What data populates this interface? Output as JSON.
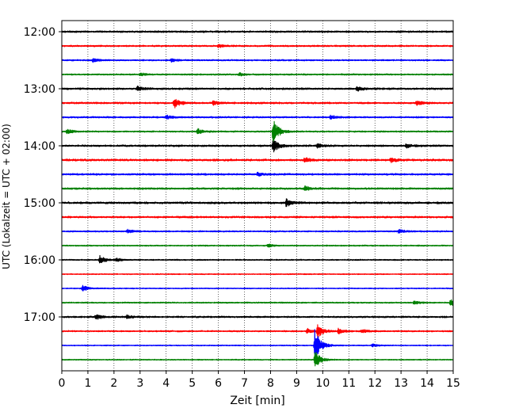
{
  "chart_data": {
    "type": "line",
    "subtype": "helicorder",
    "xlabel": "Zeit  [min]",
    "ylabel": "UTC (Lokalzeit = UTC + 02:00)",
    "xlim": [
      0,
      15
    ],
    "x_ticks": [
      "0",
      "1",
      "2",
      "3",
      "4",
      "5",
      "6",
      "7",
      "8",
      "9",
      "10",
      "11",
      "12",
      "13",
      "14",
      "15"
    ],
    "y_tick_labels": [
      "12:00",
      "13:00",
      "14:00",
      "15:00",
      "16:00",
      "17:00"
    ],
    "grid": "vertical dotted lines at each minute",
    "colors": [
      "#000000",
      "#ff0000",
      "#0000ff",
      "#008000"
    ],
    "series": [
      {
        "start": "12:00",
        "color": "#000000",
        "noise": 0.9,
        "events": []
      },
      {
        "start": "12:15",
        "color": "#ff0000",
        "noise": 0.8,
        "events": [
          [
            6.0,
            2.0
          ]
        ]
      },
      {
        "start": "12:30",
        "color": "#0000ff",
        "noise": 0.7,
        "events": [
          [
            1.2,
            2.5
          ],
          [
            4.2,
            2.2
          ]
        ]
      },
      {
        "start": "12:45",
        "color": "#008000",
        "noise": 0.7,
        "events": [
          [
            3.0,
            2.0
          ],
          [
            6.8,
            2.0
          ]
        ]
      },
      {
        "start": "13:00",
        "color": "#000000",
        "noise": 0.9,
        "events": [
          [
            2.9,
            3.5
          ],
          [
            11.3,
            3.5
          ]
        ]
      },
      {
        "start": "13:15",
        "color": "#ff0000",
        "noise": 0.9,
        "events": [
          [
            4.3,
            7.0
          ],
          [
            5.8,
            2.5
          ],
          [
            13.6,
            3.0
          ]
        ]
      },
      {
        "start": "13:30",
        "color": "#0000ff",
        "noise": 0.8,
        "events": [
          [
            4.0,
            2.5
          ],
          [
            10.3,
            2.5
          ]
        ]
      },
      {
        "start": "13:45",
        "color": "#008000",
        "noise": 0.7,
        "events": [
          [
            0.2,
            3.0
          ],
          [
            5.2,
            3.5
          ],
          [
            8.1,
            17.0
          ]
        ]
      },
      {
        "start": "14:00",
        "color": "#000000",
        "noise": 0.9,
        "events": [
          [
            8.1,
            9.0
          ],
          [
            9.8,
            2.5
          ],
          [
            13.2,
            2.5
          ]
        ]
      },
      {
        "start": "14:15",
        "color": "#ff0000",
        "noise": 1.0,
        "events": [
          [
            9.3,
            3.0
          ],
          [
            12.6,
            3.0
          ]
        ]
      },
      {
        "start": "14:30",
        "color": "#0000ff",
        "noise": 0.9,
        "events": [
          [
            7.5,
            2.0
          ]
        ]
      },
      {
        "start": "14:45",
        "color": "#008000",
        "noise": 0.9,
        "events": [
          [
            9.3,
            3.0
          ]
        ]
      },
      {
        "start": "15:00",
        "color": "#000000",
        "noise": 1.0,
        "events": [
          [
            8.6,
            5.0
          ]
        ]
      },
      {
        "start": "15:15",
        "color": "#ff0000",
        "noise": 0.9,
        "events": []
      },
      {
        "start": "15:30",
        "color": "#0000ff",
        "noise": 0.7,
        "events": [
          [
            2.5,
            2.2
          ],
          [
            12.9,
            2.5
          ]
        ]
      },
      {
        "start": "15:45",
        "color": "#008000",
        "noise": 0.6,
        "events": [
          [
            7.9,
            2.0
          ]
        ]
      },
      {
        "start": "16:00",
        "color": "#000000",
        "noise": 0.6,
        "events": [
          [
            1.45,
            5.5
          ],
          [
            2.1,
            2.0
          ]
        ]
      },
      {
        "start": "16:15",
        "color": "#ff0000",
        "noise": 0.5,
        "events": []
      },
      {
        "start": "16:30",
        "color": "#0000ff",
        "noise": 0.5,
        "events": [
          [
            0.8,
            4.0
          ]
        ]
      },
      {
        "start": "16:45",
        "color": "#008000",
        "noise": 0.6,
        "events": [
          [
            13.5,
            2.8
          ],
          [
            14.9,
            4.5
          ]
        ]
      },
      {
        "start": "17:00",
        "color": "#000000",
        "noise": 0.8,
        "events": [
          [
            1.3,
            3.5
          ],
          [
            2.5,
            2.0
          ]
        ]
      },
      {
        "start": "17:15",
        "color": "#ff0000",
        "noise": 0.7,
        "events": [
          [
            9.4,
            3.0
          ],
          [
            9.8,
            9.0
          ],
          [
            10.6,
            3.5
          ],
          [
            11.5,
            2.5
          ]
        ]
      },
      {
        "start": "17:30",
        "color": "#0000ff",
        "noise": 0.5,
        "events": [
          [
            9.7,
            23.0
          ],
          [
            11.9,
            2.0
          ]
        ]
      },
      {
        "start": "17:45",
        "color": "#008000",
        "noise": 0.5,
        "events": [
          [
            9.7,
            12.0
          ]
        ]
      }
    ]
  }
}
